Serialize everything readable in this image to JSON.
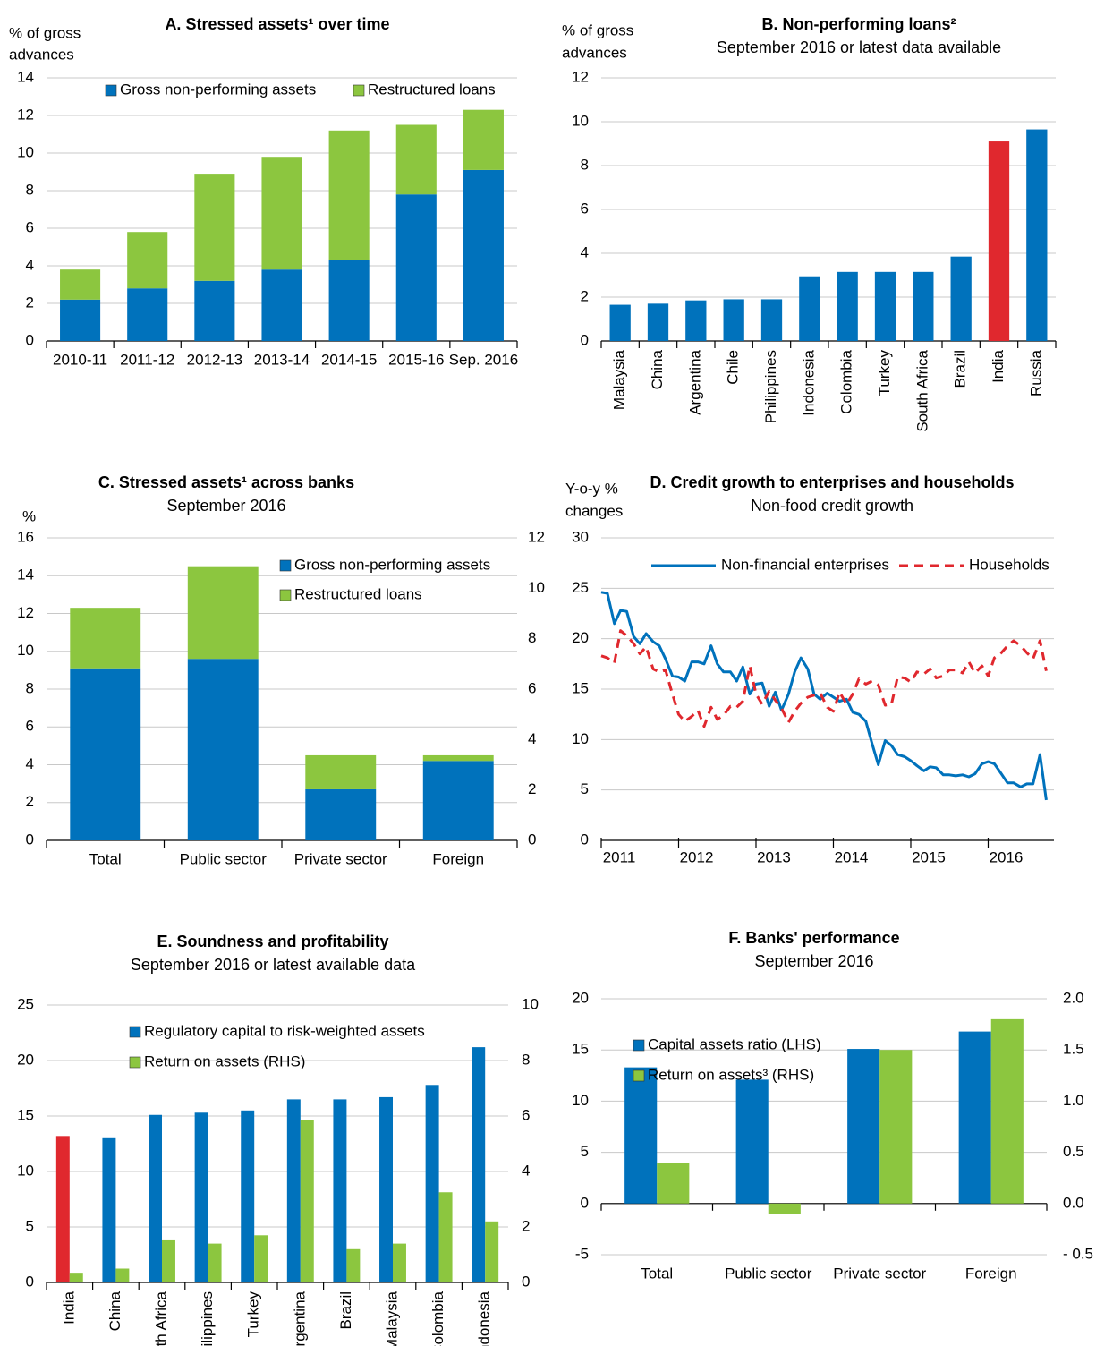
{
  "chart_data": [
    {
      "type": "bar",
      "stacked": true,
      "title": "A. Stressed assets¹ over time",
      "ylabel": [
        "% of gross",
        "advances"
      ],
      "categories": [
        "2010-11",
        "2011-12",
        "2012-13",
        "2013-14",
        "2014-15",
        "2015-16",
        "Sep. 2016"
      ],
      "series": [
        {
          "name": "Gross non-performing assets",
          "color": "#0072bc",
          "values": [
            2.2,
            2.8,
            3.2,
            3.8,
            4.3,
            7.8,
            9.1
          ]
        },
        {
          "name": "Restructured loans",
          "color": "#8cc63f",
          "values": [
            1.6,
            3.0,
            5.7,
            6.0,
            6.9,
            3.7,
            3.2
          ]
        }
      ],
      "ylim": [
        0,
        14
      ],
      "yticks": [
        0,
        2,
        4,
        6,
        8,
        10,
        12,
        14
      ],
      "grid": true
    },
    {
      "type": "bar",
      "title": "B. Non-performing loans²",
      "subtitle": "September 2016 or latest data available",
      "ylabel": [
        "% of gross",
        "advances"
      ],
      "categories": [
        "Malaysia",
        "China",
        "Argentina",
        "Chile",
        "Philippines",
        "Indonesia",
        "Colombia",
        "Turkey",
        "South Africa",
        "Brazil",
        "India",
        "Russia"
      ],
      "values": [
        1.65,
        1.7,
        1.85,
        1.9,
        1.9,
        2.95,
        3.15,
        3.15,
        3.15,
        3.85,
        9.1,
        9.65
      ],
      "colors": [
        "#0072bc",
        "#0072bc",
        "#0072bc",
        "#0072bc",
        "#0072bc",
        "#0072bc",
        "#0072bc",
        "#0072bc",
        "#0072bc",
        "#0072bc",
        "#e0282e",
        "#0072bc"
      ],
      "ylim": [
        0,
        12
      ],
      "yticks": [
        0,
        2,
        4,
        6,
        8,
        10,
        12
      ],
      "grid": true
    },
    {
      "type": "bar",
      "stacked": true,
      "title": "C. Stressed assets¹ across banks",
      "subtitle": "September 2016",
      "ylabel": [
        "%"
      ],
      "categories": [
        "Total",
        "Public sector",
        "Private sector",
        "Foreign"
      ],
      "series": [
        {
          "name": "Gross non-performing assets",
          "color": "#0072bc",
          "values": [
            9.1,
            9.6,
            2.7,
            4.2
          ]
        },
        {
          "name": "Restructured loans",
          "color": "#8cc63f",
          "values": [
            3.2,
            4.9,
            1.8,
            0.3
          ]
        }
      ],
      "ylim": [
        0,
        16
      ],
      "yticks": [
        0,
        2,
        4,
        6,
        8,
        10,
        12,
        14,
        16
      ],
      "y2lim": [
        0,
        12
      ],
      "y2ticks": [
        0,
        2,
        4,
        6,
        8,
        10,
        12
      ],
      "grid": true
    },
    {
      "type": "line",
      "title": "D. Credit growth to enterprises and households",
      "subtitle": "Non-food credit growth",
      "ylabel": [
        "Y-o-y %",
        "changes"
      ],
      "x": [
        2011.0,
        2011.08,
        2011.17,
        2011.25,
        2011.33,
        2011.42,
        2011.5,
        2011.58,
        2011.67,
        2011.75,
        2011.83,
        2011.92,
        2012.0,
        2012.08,
        2012.17,
        2012.25,
        2012.33,
        2012.42,
        2012.5,
        2012.58,
        2012.67,
        2012.75,
        2012.83,
        2012.92,
        2013.0,
        2013.08,
        2013.17,
        2013.25,
        2013.33,
        2013.42,
        2013.5,
        2013.58,
        2013.67,
        2013.75,
        2013.83,
        2013.92,
        2014.0,
        2014.08,
        2014.17,
        2014.25,
        2014.33,
        2014.42,
        2014.5,
        2014.58,
        2014.67,
        2014.75,
        2014.83,
        2014.92,
        2015.0,
        2015.08,
        2015.17,
        2015.25,
        2015.33,
        2015.42,
        2015.5,
        2015.58,
        2015.67,
        2015.75,
        2015.83,
        2015.92,
        2016.0,
        2016.08,
        2016.17,
        2016.25,
        2016.33,
        2016.42,
        2016.5,
        2016.58,
        2016.67,
        2016.75
      ],
      "series": [
        {
          "name": "Non-financial enterprises",
          "color": "#0072bc",
          "values": [
            24.6,
            24.5,
            21.5,
            22.8,
            22.7,
            20.2,
            19.5,
            20.5,
            19.7,
            19.3,
            18.0,
            16.3,
            16.2,
            15.8,
            17.7,
            17.7,
            17.5,
            19.3,
            17.5,
            16.7,
            16.7,
            15.8,
            17.2,
            14.5,
            15.5,
            15.6,
            13.3,
            14.7,
            12.9,
            14.5,
            16.7,
            18.1,
            17.0,
            14.5,
            14.0,
            14.6,
            14.2,
            13.8,
            14.0,
            12.7,
            12.5,
            11.8,
            9.6,
            7.5,
            9.9,
            9.4,
            8.5,
            8.3,
            7.9,
            7.4,
            6.9,
            7.3,
            7.2,
            6.5,
            6.5,
            6.4,
            6.5,
            6.3,
            6.6,
            7.6,
            7.8,
            7.6,
            6.6,
            5.7,
            5.7,
            5.3,
            5.6,
            5.6,
            8.5,
            4.0
          ]
        },
        {
          "name": "Households",
          "color": "#e0282e",
          "dash": true,
          "values": [
            18.3,
            18.1,
            17.6,
            20.8,
            20.3,
            19.5,
            18.5,
            19.2,
            17.0,
            16.7,
            16.9,
            14.5,
            12.5,
            11.8,
            12.3,
            12.9,
            11.3,
            13.2,
            12.0,
            12.4,
            13.3,
            13.2,
            13.8,
            17.3,
            14.5,
            13.5,
            14.8,
            13.9,
            13.1,
            11.7,
            12.8,
            13.6,
            14.2,
            14.4,
            14.6,
            13.2,
            12.8,
            14.7,
            13.5,
            14.5,
            16.0,
            15.5,
            15.8,
            15.4,
            13.4,
            13.5,
            16.2,
            16.1,
            15.7,
            16.7,
            16.5,
            17.0,
            16.1,
            16.3,
            16.9,
            16.9,
            16.6,
            17.7,
            16.6,
            17.3,
            16.3,
            18.1,
            18.6,
            19.3,
            19.8,
            19.3,
            18.6,
            18.0,
            19.8,
            16.8
          ]
        }
      ],
      "xlim": [
        2011,
        2016.85
      ],
      "xticks": [
        2011,
        2012,
        2013,
        2014,
        2015,
        2016
      ],
      "ylim": [
        0,
        30
      ],
      "yticks": [
        0,
        5,
        10,
        15,
        20,
        25,
        30
      ],
      "grid": true
    },
    {
      "type": "bar",
      "title": "E. Soundness and profitability",
      "subtitle": "September 2016 or latest available data",
      "categories": [
        "India",
        "China",
        "South Africa",
        "Philippines",
        "Turkey",
        "Argentina",
        "Brazil",
        "Malaysia",
        "Colombia",
        "Indonesia"
      ],
      "series": [
        {
          "name": "Regulatory capital to risk-weighted assets",
          "color": "#0072bc",
          "colors": [
            "#e0282e",
            "#0072bc",
            "#0072bc",
            "#0072bc",
            "#0072bc",
            "#0072bc",
            "#0072bc",
            "#0072bc",
            "#0072bc",
            "#0072bc"
          ],
          "values": [
            13.2,
            13.0,
            15.1,
            15.3,
            15.5,
            16.5,
            16.5,
            16.7,
            17.8,
            21.2
          ]
        },
        {
          "name": "Return on assets (RHS)",
          "color": "#8cc63f",
          "axis": "y2",
          "values": [
            0.35,
            0.5,
            1.55,
            1.4,
            1.7,
            5.85,
            1.2,
            1.4,
            3.25,
            2.2
          ]
        }
      ],
      "ylim": [
        0,
        25
      ],
      "yticks": [
        0,
        5,
        10,
        15,
        20,
        25
      ],
      "y2lim": [
        0,
        10
      ],
      "y2ticks": [
        0,
        2,
        4,
        6,
        8,
        10
      ],
      "grid": true
    },
    {
      "type": "bar",
      "title": "F. Banks' performance",
      "subtitle": "September 2016",
      "categories": [
        "Total",
        "Public sector",
        "Private sector",
        "Foreign"
      ],
      "series": [
        {
          "name": "Capital assets ratio (LHS)",
          "color": "#0072bc",
          "values": [
            13.3,
            12.1,
            15.1,
            16.8
          ]
        },
        {
          "name": "Return on assets³ (RHS)",
          "color": "#8cc63f",
          "axis": "y2",
          "values": [
            0.4,
            -0.1,
            1.5,
            1.8
          ]
        }
      ],
      "ylim": [
        -5,
        20
      ],
      "yticks": [
        -5,
        0,
        5,
        10,
        15,
        20
      ],
      "y2lim": [
        -0.5,
        2.0
      ],
      "y2ticks": [
        {
          "value": -0.5,
          "label": "- 0.5"
        },
        {
          "value": 0,
          "label": "0.0"
        },
        {
          "value": 0.5,
          "label": "0.5"
        },
        {
          "value": 1.0,
          "label": "1.0"
        },
        {
          "value": 1.5,
          "label": "1.5"
        },
        {
          "value": 2.0,
          "label": "2.0"
        }
      ],
      "grid": true
    }
  ]
}
